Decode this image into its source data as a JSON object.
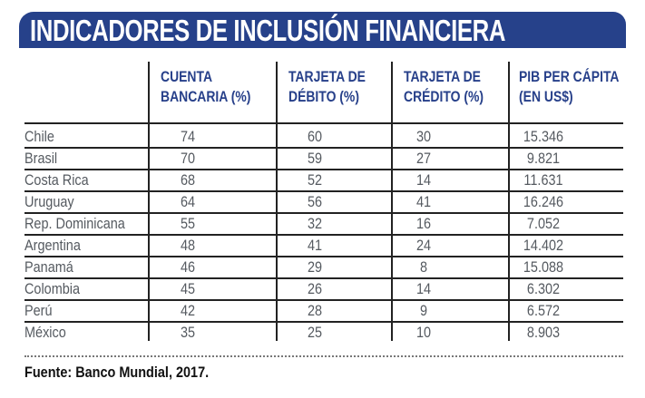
{
  "title": "INDICADORES DE INCLUSIÓN FINANCIERA",
  "colors": {
    "banner": "#26418a",
    "header_text": "#27408a",
    "cell_text": "#555a60"
  },
  "columns": [
    {
      "line1": "CUENTA",
      "line2": "BANCARIA (%)"
    },
    {
      "line1": "TARJETA DE",
      "line2": "DÉBITO (%)"
    },
    {
      "line1": "TARJETA DE",
      "line2": "CRÉDITO (%)"
    },
    {
      "line1": "PIB PER CÁPITA",
      "line2": "(EN US$)"
    }
  ],
  "rows": [
    {
      "country": "Chile",
      "cuenta": "74",
      "debito": "60",
      "credito": "30",
      "pib": "15.346"
    },
    {
      "country": "Brasil",
      "cuenta": "70",
      "debito": "59",
      "credito": "27",
      "pib": "9.821"
    },
    {
      "country": "Costa Rica",
      "cuenta": "68",
      "debito": "52",
      "credito": "14",
      "pib": "11.631"
    },
    {
      "country": "Uruguay",
      "cuenta": "64",
      "debito": "56",
      "credito": "41",
      "pib": "16.246"
    },
    {
      "country": "Rep. Dominicana",
      "cuenta": "55",
      "debito": "32",
      "credito": "16",
      "pib": "7.052"
    },
    {
      "country": "Argentina",
      "cuenta": "48",
      "debito": "41",
      "credito": "24",
      "pib": "14.402"
    },
    {
      "country": "Panamá",
      "cuenta": "46",
      "debito": "29",
      "credito": "8",
      "pib": "15.088"
    },
    {
      "country": "Colombia",
      "cuenta": "45",
      "debito": "26",
      "credito": "14",
      "pib": "6.302"
    },
    {
      "country": "Perú",
      "cuenta": "42",
      "debito": "28",
      "credito": "9",
      "pib": "6.572"
    },
    {
      "country": "México",
      "cuenta": "35",
      "debito": "25",
      "credito": "10",
      "pib": "8.903"
    }
  ],
  "source": "Fuente: Banco Mundial, 2017."
}
